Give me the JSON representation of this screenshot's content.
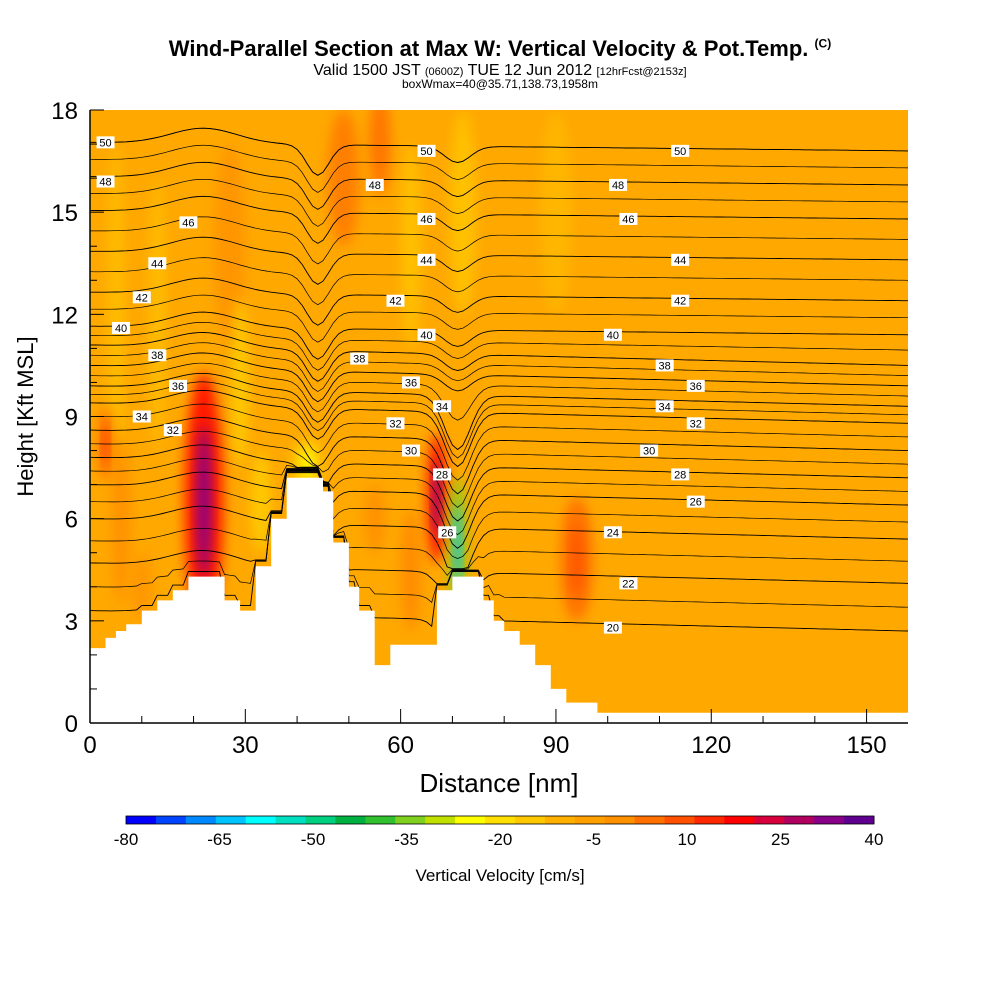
{
  "title": {
    "main": "Wind-Parallel Section at Max W: Vertical Velocity & Pot.Temp.",
    "copyright": "(C)",
    "valid_prefix": "Valid 1500 JST",
    "valid_utc": "(0600Z)",
    "valid_date": "TUE 12 Jun 2012",
    "forecast": "[12hrFcst@2153z]",
    "boxinfo": "boxWmax=40@35.71,138.73,1958m"
  },
  "chart_data": {
    "type": "heatmap",
    "xlabel": "Distance [nm]",
    "ylabel": "Height [Kft MSL]",
    "xlim": [
      0,
      158
    ],
    "ylim": [
      0,
      18
    ],
    "x_ticks": [
      "0",
      "30",
      "60",
      "90",
      "120",
      "150"
    ],
    "y_ticks": [
      "0",
      "3",
      "6",
      "9",
      "12",
      "15",
      "18"
    ],
    "colorbar": {
      "label": "Vertical Velocity [cm/s]",
      "tick_labels": [
        "-80",
        "-65",
        "-50",
        "-35",
        "-20",
        "-5",
        "10",
        "25",
        "40"
      ],
      "colors": [
        "#0000ff",
        "#0044ff",
        "#0088ff",
        "#00c4ff",
        "#00ffff",
        "#00e0c0",
        "#00d080",
        "#00b040",
        "#30c030",
        "#80d020",
        "#c0e000",
        "#ffff00",
        "#ffe000",
        "#ffc800",
        "#ffb000",
        "#ffa000",
        "#ff9000",
        "#ff7000",
        "#ff5000",
        "#ff2800",
        "#ff0000",
        "#d8003c",
        "#b00060",
        "#880088",
        "#600090"
      ]
    },
    "terrain_profile": [
      [
        0,
        2.2
      ],
      [
        3,
        2.2
      ],
      [
        3,
        2.5
      ],
      [
        5,
        2.5
      ],
      [
        5,
        2.7
      ],
      [
        7,
        2.7
      ],
      [
        7,
        2.9
      ],
      [
        10,
        2.9
      ],
      [
        10,
        3.3
      ],
      [
        13,
        3.3
      ],
      [
        13,
        3.6
      ],
      [
        16,
        3.6
      ],
      [
        16,
        3.9
      ],
      [
        19,
        3.9
      ],
      [
        19,
        4.3
      ],
      [
        26,
        4.3
      ],
      [
        26,
        3.6
      ],
      [
        29,
        3.6
      ],
      [
        29,
        3.3
      ],
      [
        32,
        3.3
      ],
      [
        32,
        4.6
      ],
      [
        35,
        4.6
      ],
      [
        35,
        6.0
      ],
      [
        38,
        6.0
      ],
      [
        38,
        7.2
      ],
      [
        45,
        7.2
      ],
      [
        45,
        6.8
      ],
      [
        47,
        6.8
      ],
      [
        47,
        5.3
      ],
      [
        50,
        5.3
      ],
      [
        50,
        4.0
      ],
      [
        52,
        4.0
      ],
      [
        52,
        3.3
      ],
      [
        55,
        3.3
      ],
      [
        55,
        1.7
      ],
      [
        58,
        1.7
      ],
      [
        58,
        2.3
      ],
      [
        67,
        2.3
      ],
      [
        67,
        3.9
      ],
      [
        70,
        3.9
      ],
      [
        70,
        4.3
      ],
      [
        76,
        4.3
      ],
      [
        76,
        3.6
      ],
      [
        78,
        3.6
      ],
      [
        78,
        3.0
      ],
      [
        80,
        3.0
      ],
      [
        80,
        2.7
      ],
      [
        83,
        2.7
      ],
      [
        83,
        2.3
      ],
      [
        86,
        2.3
      ],
      [
        86,
        1.7
      ],
      [
        89,
        1.7
      ],
      [
        89,
        1.0
      ],
      [
        92,
        1.0
      ],
      [
        92,
        0.6
      ],
      [
        98,
        0.6
      ],
      [
        98,
        0.3
      ],
      [
        158,
        0.3
      ]
    ],
    "theta_contours": {
      "unit_note": "Potential temperature isotherms; labels printed on lines",
      "labels": [
        "20",
        "22",
        "24",
        "26",
        "28",
        "30",
        "32",
        "34",
        "36",
        "38",
        "40",
        "42",
        "44",
        "46",
        "48",
        "50"
      ]
    },
    "theta_label_positions": [
      {
        "text": "50",
        "x": 3,
        "y": 17.05
      },
      {
        "text": "50",
        "x": 65,
        "y": 16.8
      },
      {
        "text": "50",
        "x": 114,
        "y": 16.8
      },
      {
        "text": "48",
        "x": 3,
        "y": 15.9
      },
      {
        "text": "48",
        "x": 55,
        "y": 15.8
      },
      {
        "text": "48",
        "x": 102,
        "y": 15.8
      },
      {
        "text": "46",
        "x": 19,
        "y": 14.7
      },
      {
        "text": "46",
        "x": 65,
        "y": 14.8
      },
      {
        "text": "46",
        "x": 104,
        "y": 14.8
      },
      {
        "text": "44",
        "x": 13,
        "y": 13.5
      },
      {
        "text": "44",
        "x": 65,
        "y": 13.6
      },
      {
        "text": "44",
        "x": 114,
        "y": 13.6
      },
      {
        "text": "42",
        "x": 10,
        "y": 12.5
      },
      {
        "text": "42",
        "x": 59,
        "y": 12.4
      },
      {
        "text": "42",
        "x": 114,
        "y": 12.4
      },
      {
        "text": "40",
        "x": 6,
        "y": 11.6
      },
      {
        "text": "40",
        "x": 65,
        "y": 11.4
      },
      {
        "text": "40",
        "x": 101,
        "y": 11.4
      },
      {
        "text": "38",
        "x": 13,
        "y": 10.8
      },
      {
        "text": "38",
        "x": 52,
        "y": 10.7
      },
      {
        "text": "38",
        "x": 111,
        "y": 10.5
      },
      {
        "text": "36",
        "x": 17,
        "y": 9.9
      },
      {
        "text": "36",
        "x": 62,
        "y": 10.0
      },
      {
        "text": "36",
        "x": 117,
        "y": 9.9
      },
      {
        "text": "34",
        "x": 10,
        "y": 9.0
      },
      {
        "text": "34",
        "x": 68,
        "y": 9.3
      },
      {
        "text": "34",
        "x": 111,
        "y": 9.3
      },
      {
        "text": "32",
        "x": 16,
        "y": 8.6
      },
      {
        "text": "32",
        "x": 59,
        "y": 8.8
      },
      {
        "text": "32",
        "x": 117,
        "y": 8.8
      },
      {
        "text": "30",
        "x": 62,
        "y": 8.0
      },
      {
        "text": "30",
        "x": 108,
        "y": 8.0
      },
      {
        "text": "28",
        "x": 68,
        "y": 7.3
      },
      {
        "text": "28",
        "x": 114,
        "y": 7.3
      },
      {
        "text": "26",
        "x": 69,
        "y": 5.6
      },
      {
        "text": "26",
        "x": 117,
        "y": 6.5
      },
      {
        "text": "24",
        "x": 101,
        "y": 5.6
      },
      {
        "text": "22",
        "x": 104,
        "y": 4.1
      },
      {
        "text": "20",
        "x": 101,
        "y": 2.8
      }
    ],
    "velocity_features": [
      {
        "desc": "updraft",
        "x": 22,
        "y": 6.5,
        "rx": 2.5,
        "ry": 2.8,
        "value": 40
      },
      {
        "desc": "updraft",
        "x": 3,
        "y": 8.2,
        "rx": 1.0,
        "ry": 0.8,
        "value": 20
      },
      {
        "desc": "updraft",
        "x": 67,
        "y": 6.6,
        "rx": 1.3,
        "ry": 1.4,
        "value": 40
      },
      {
        "desc": "downdraft",
        "x": 71,
        "y": 5.2,
        "rx": 1.2,
        "ry": 1.5,
        "value": -65
      },
      {
        "desc": "downdraft",
        "x": 42,
        "y": 7.6,
        "rx": 2.2,
        "ry": 0.6,
        "value": -25
      },
      {
        "desc": "updraft",
        "x": 94,
        "y": 4.8,
        "rx": 2.0,
        "ry": 1.3,
        "value": 15
      }
    ]
  }
}
